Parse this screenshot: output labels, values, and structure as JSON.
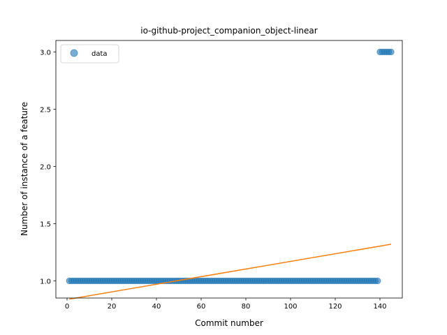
{
  "chart_data": {
    "type": "scatter",
    "title": "io-github-project_companion_object-linear",
    "xlabel": "Commit number",
    "ylabel": "Number of instance of a feature",
    "xlim": [
      -5,
      150
    ],
    "ylim": [
      0.85,
      3.1
    ],
    "xticks": [
      0,
      20,
      40,
      60,
      80,
      100,
      120,
      140
    ],
    "yticks": [
      1.0,
      1.5,
      2.0,
      2.5,
      3.0
    ],
    "ytick_labels": [
      "1.0",
      "1.5",
      "2.0",
      "2.5",
      "3.0"
    ],
    "grid": false,
    "legend": {
      "position": "top-left",
      "entries": [
        "data"
      ]
    },
    "colors": {
      "data": "#1f77b4",
      "fit": "#ff7f0e"
    },
    "series": [
      {
        "name": "data",
        "kind": "scatter",
        "segments": [
          {
            "x_start": 1,
            "x_end": 139,
            "y": 1.0
          },
          {
            "x_start": 140,
            "x_end": 145,
            "y": 3.0
          }
        ]
      },
      {
        "kind": "line",
        "points": [
          {
            "x": 1,
            "y": 0.84
          },
          {
            "x": 145,
            "y": 1.32
          }
        ]
      }
    ]
  }
}
